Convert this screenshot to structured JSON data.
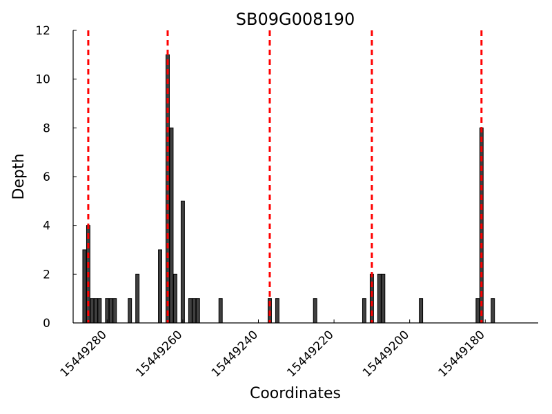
{
  "chart_data": {
    "type": "bar",
    "title": "SB09G008190",
    "xlabel": "Coordinates",
    "ylabel": "Depth",
    "x_reversed": true,
    "xlim": [
      15449289,
      15449166
    ],
    "ylim": [
      0,
      12
    ],
    "yticks": [
      0,
      2,
      4,
      6,
      8,
      10,
      12
    ],
    "xticks": [
      15449280,
      15449260,
      15449240,
      15449220,
      15449200,
      15449180
    ],
    "bar_color": "#404040",
    "marker_color": "#ff0000",
    "marker_positions": [
      15449285,
      15449264,
      15449237,
      15449210,
      15449181
    ],
    "x": [
      15449286,
      15449285,
      15449284,
      15449283,
      15449282,
      15449280,
      15449279,
      15449278,
      15449274,
      15449272,
      15449266,
      15449264,
      15449263,
      15449262,
      15449260,
      15449258,
      15449257,
      15449256,
      15449250,
      15449237,
      15449235,
      15449225,
      15449212,
      15449210,
      15449208,
      15449207,
      15449197,
      15449182,
      15449181,
      15449178
    ],
    "values": [
      3,
      4,
      1,
      1,
      1,
      1,
      1,
      1,
      1,
      2,
      3,
      11,
      8,
      2,
      5,
      1,
      1,
      1,
      1,
      1,
      1,
      1,
      1,
      2,
      2,
      2,
      1,
      1,
      8,
      1
    ]
  }
}
